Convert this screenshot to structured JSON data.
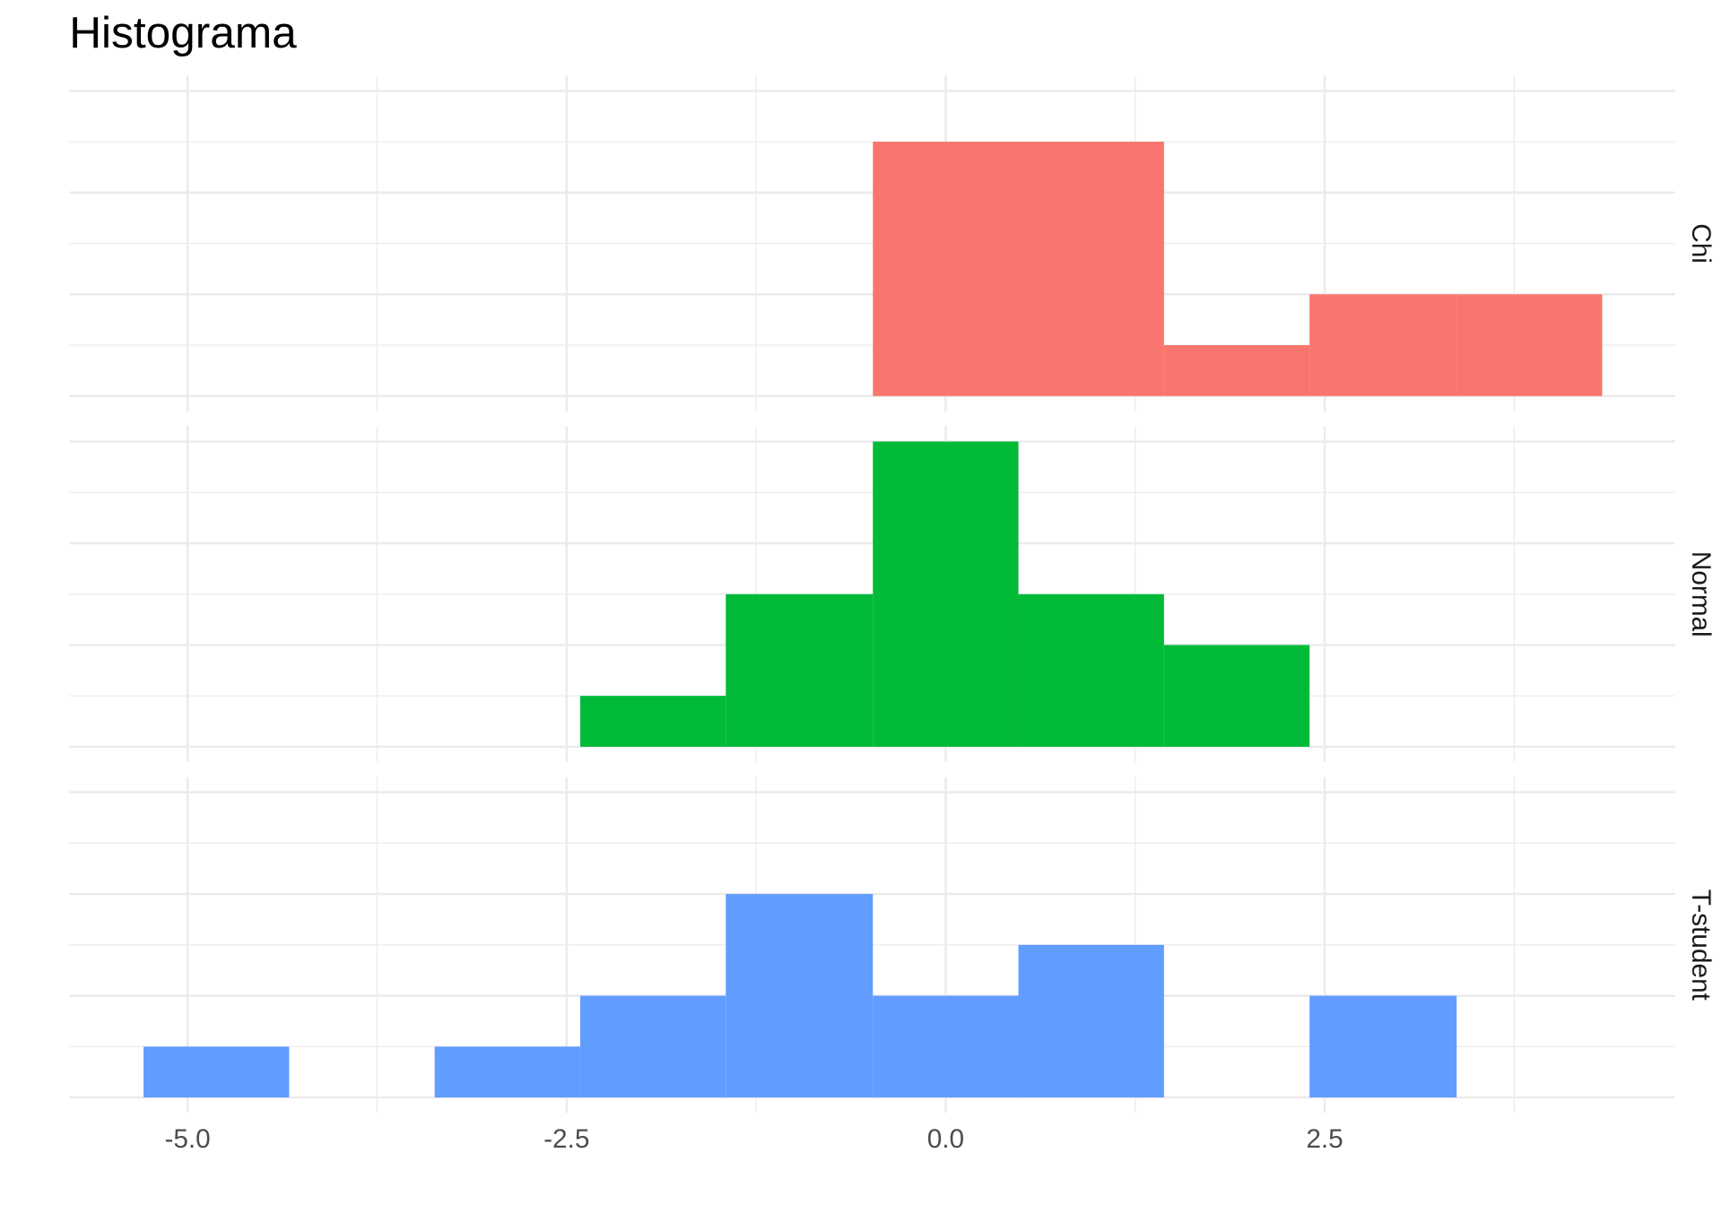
{
  "chart_data": {
    "type": "histogram",
    "title": "Histograma",
    "bins": [
      -5.29,
      -4.33,
      -3.37,
      -2.41,
      -1.45,
      -0.48,
      0.48,
      1.44,
      2.4,
      3.37,
      4.33
    ],
    "series": [
      {
        "name": "Chi",
        "color": "#F8766D",
        "values": [
          0,
          0,
          0,
          0,
          0,
          5,
          5,
          1,
          2,
          2
        ]
      },
      {
        "name": "Normal",
        "color": "#00BA38",
        "values": [
          0,
          0,
          0,
          1,
          3,
          6,
          3,
          2,
          0,
          0
        ]
      },
      {
        "name": "T-student",
        "color": "#619CFF",
        "values": [
          1,
          0,
          1,
          2,
          4,
          2,
          3,
          0,
          2,
          0
        ]
      }
    ],
    "xlim": [
      -5.78,
      4.81
    ],
    "xticks": [
      {
        "value": -5,
        "label": "-5.0"
      },
      {
        "value": -2.5,
        "label": "-2.5"
      },
      {
        "value": 0,
        "label": "0.0"
      },
      2.5
    ],
    "ylim": [
      -0.3,
      6.3
    ],
    "yticks": [
      0,
      2,
      4,
      6
    ],
    "grid": true
  }
}
